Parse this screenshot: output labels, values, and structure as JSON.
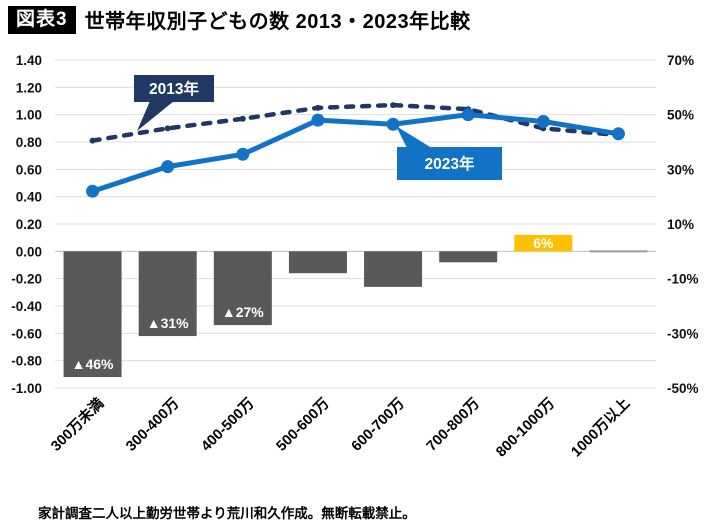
{
  "header": {
    "badge": "図表3",
    "title": "世帯年収別子どもの数 2013・2023年比較"
  },
  "footer": {
    "source": "家計調査二人以上勤労世帯より荒川和久作成。無断転載禁止。"
  },
  "colors": {
    "navy_2013": "#203864",
    "blue_2023": "#1272C6",
    "bar_gray": "#595959",
    "bar_orange": "#FFC000",
    "gridline": "#DEDEDE",
    "zero_line": "#BFBFBF"
  },
  "chart_data": {
    "type": "combo",
    "categories": [
      "300万未満",
      "300-400万",
      "400-500万",
      "500-600万",
      "600-700万",
      "700-800万",
      "800-1000万",
      "1000万以上"
    ],
    "series": [
      {
        "name": "2013年",
        "type": "line",
        "style": "dashed",
        "axis": "left",
        "color": "#203864",
        "values": [
          0.81,
          0.9,
          0.97,
          1.05,
          1.07,
          1.04,
          0.9,
          0.85
        ]
      },
      {
        "name": "2023年",
        "type": "line",
        "style": "solid",
        "axis": "left",
        "color": "#1272C6",
        "values": [
          0.44,
          0.62,
          0.71,
          0.96,
          0.93,
          1.0,
          0.95,
          0.86
        ]
      },
      {
        "name": "",
        "type": "bar",
        "axis": "right",
        "default_color": "#595959",
        "values": [
          -46,
          -31,
          -27,
          -8,
          -13,
          -4,
          6,
          0
        ],
        "labels": [
          "▲46%",
          "▲31%",
          "▲27%",
          "",
          "",
          "",
          "6%",
          ""
        ],
        "colors": [
          null,
          null,
          null,
          null,
          null,
          null,
          "#FFC000",
          null
        ]
      }
    ],
    "left_axis": {
      "min": -1.0,
      "max": 1.4,
      "ticks": [
        "1.40",
        "1.20",
        "1.00",
        "0.80",
        "0.60",
        "0.40",
        "0.20",
        "0.00",
        "-0.20",
        "-0.40",
        "-0.60",
        "-0.80",
        "-1.00"
      ]
    },
    "right_axis": {
      "min": -50,
      "max": 70,
      "ticks": [
        "70%",
        "50%",
        "30%",
        "10%",
        "-10%",
        "-30%",
        "-50%"
      ]
    },
    "callouts": [
      {
        "text": "2013年",
        "color": "#203864"
      },
      {
        "text": "2023年",
        "color": "#1272C6"
      }
    ],
    "grid": true,
    "legend_position": "callouts",
    "title": "世帯年収別子どもの数 2013・2023年比較"
  }
}
